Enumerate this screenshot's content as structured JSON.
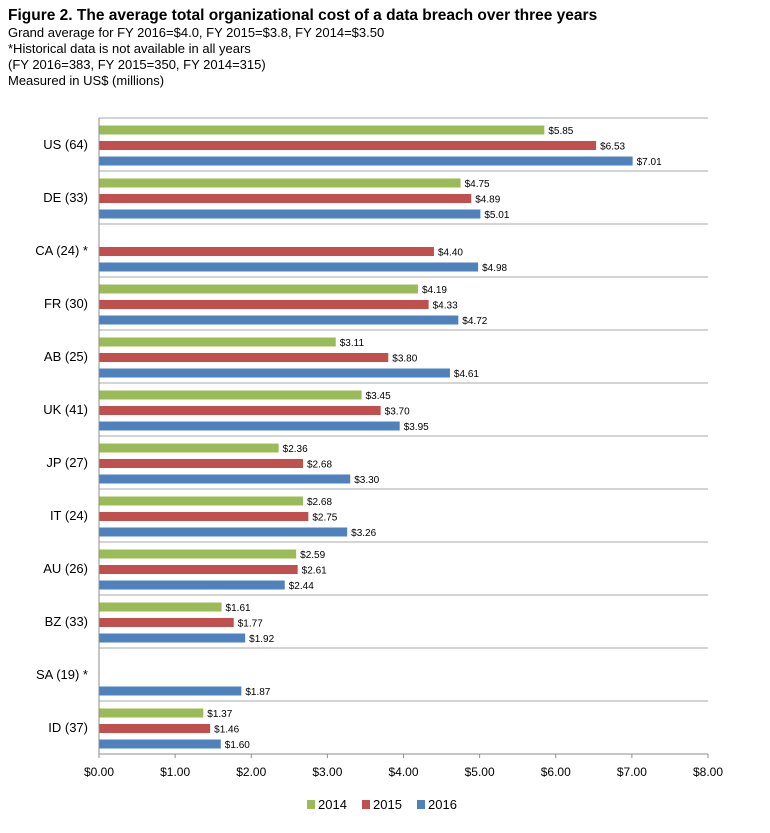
{
  "header": {
    "title": "Figure 2. The average total organizational cost of a data breach over three years",
    "lines": [
      "Grand average for FY 2016=$4.0, FY 2015=$3.8, FY 2014=$3.50",
      "*Historical data is not available in all years",
      "(FY 2016=383, FY 2015=350, FY 2014=315)",
      "Measured in US$ (millions)"
    ]
  },
  "chart_data": {
    "type": "bar",
    "orientation": "horizontal",
    "title": "Figure 2. The average total organizational cost of a data breach over three years",
    "categories": [
      "US (64)",
      "DE (33)",
      "CA (24) *",
      "FR (30)",
      "AB (25)",
      "UK (41)",
      "JP (27)",
      "IT (24)",
      "AU (26)",
      "BZ (33)",
      "SA (19) *",
      "ID (37)"
    ],
    "series": [
      {
        "name": "2014",
        "color": "#9bbb59",
        "values": [
          5.85,
          4.75,
          null,
          4.19,
          3.11,
          3.45,
          2.36,
          2.68,
          2.59,
          1.61,
          null,
          1.37
        ]
      },
      {
        "name": "2015",
        "color": "#c0504d",
        "values": [
          6.53,
          4.89,
          4.4,
          4.33,
          3.8,
          3.7,
          2.68,
          2.75,
          2.61,
          1.77,
          null,
          1.46
        ]
      },
      {
        "name": "2016",
        "color": "#4f81bd",
        "values": [
          7.01,
          5.01,
          4.98,
          4.72,
          4.61,
          3.95,
          3.3,
          3.26,
          2.44,
          1.92,
          1.87,
          1.6
        ]
      }
    ],
    "value_prefix": "$",
    "xlim": [
      0,
      8
    ],
    "xticks": [
      "$0.00",
      "$1.00",
      "$2.00",
      "$3.00",
      "$4.00",
      "$5.00",
      "$6.00",
      "$7.00",
      "$8.00"
    ],
    "grid": "horizontal separators between groups",
    "legend": "bottom-center"
  }
}
